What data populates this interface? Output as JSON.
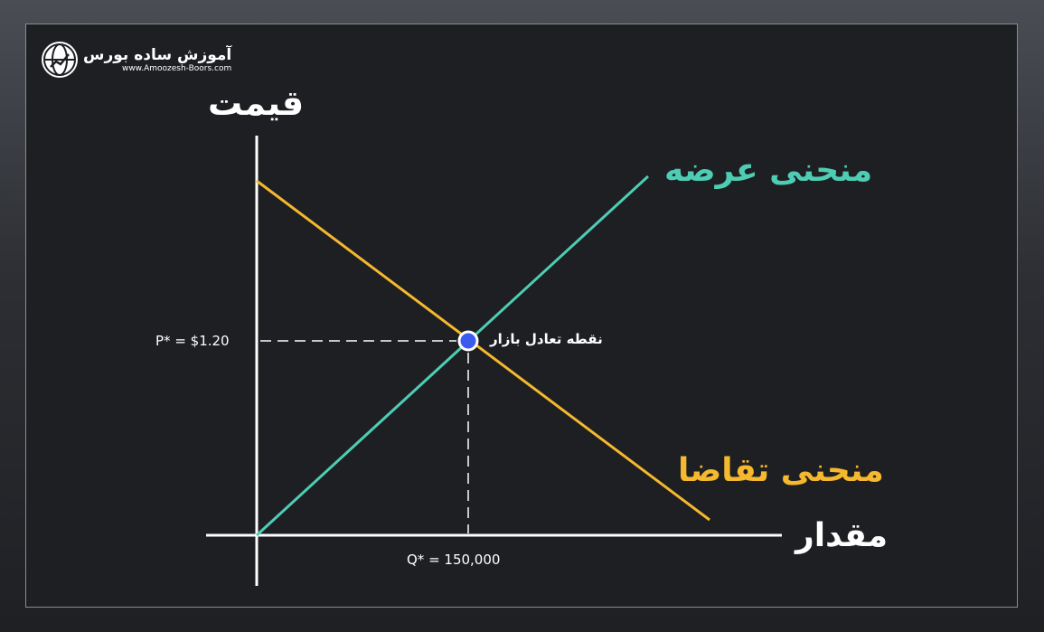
{
  "logo": {
    "name": "آموزش ساده بورس",
    "url": "www.Amoozesh-Boors.com"
  },
  "axes": {
    "y_label": "قیمت",
    "x_label": "مقدار"
  },
  "curves": {
    "supply_label": "منحنی عرضه",
    "demand_label": "منحنی تقاضا"
  },
  "equilibrium": {
    "label": "نقطه تعادل بازار",
    "price_label": "P* = $1.20",
    "quantity_label": "Q* = 150,000"
  },
  "colors": {
    "supply": "#4ecdb4",
    "demand": "#f5b82e",
    "point": "#3b5bf0",
    "background": "#1e1f22",
    "axis": "#ffffff"
  }
}
